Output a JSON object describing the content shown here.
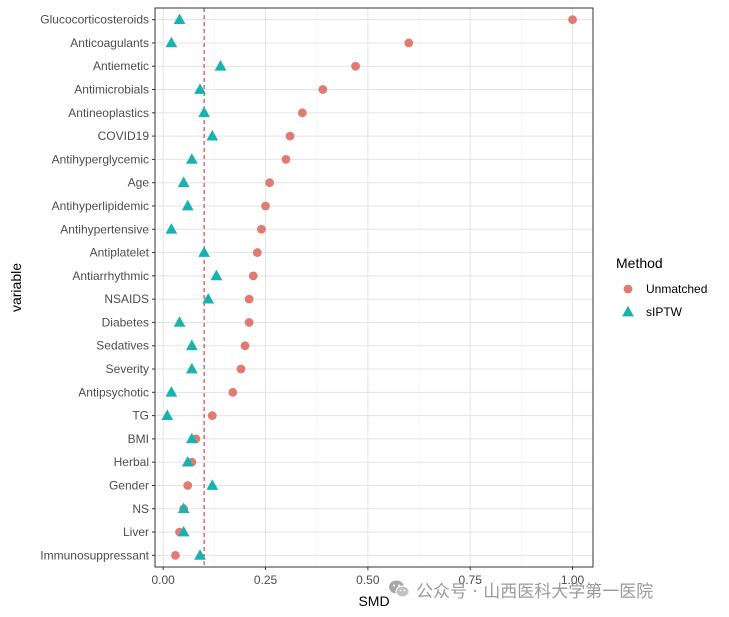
{
  "chart_data": {
    "type": "scatter",
    "orientation": "horizontal-dot-plot",
    "xlabel": "SMD",
    "ylabel": "variable",
    "xlim": [
      -0.02,
      1.05
    ],
    "xticks": [
      0.0,
      0.25,
      0.5,
      0.75,
      1.0
    ],
    "xtick_labels": [
      "0.00",
      "0.25",
      "0.50",
      "0.75",
      "1.00"
    ],
    "reference_line": 0.1,
    "grid": true,
    "legend": {
      "title": "Method",
      "position": "right"
    },
    "categories": [
      "Glucocorticosteroids",
      "Anticoagulants",
      "Antiemetic",
      "Antimicrobials",
      "Antineoplastics",
      "COVID19",
      "Antihyperglycemic",
      "Age",
      "Antihyperlipidemic",
      "Antihypertensive",
      "Antiplatelet",
      "Antiarrhythmic",
      "NSAIDS",
      "Diabetes",
      "Sedatives",
      "Severity",
      "Antipsychotic",
      "TG",
      "BMI",
      "Herbal",
      "Gender",
      "NS",
      "Liver",
      "Immunosuppressant"
    ],
    "series": [
      {
        "name": "Unmatched",
        "marker": "circle",
        "color": "#E07B72",
        "values": [
          1.0,
          0.6,
          0.47,
          0.39,
          0.34,
          0.31,
          0.3,
          0.26,
          0.25,
          0.24,
          0.23,
          0.22,
          0.21,
          0.21,
          0.2,
          0.19,
          0.17,
          0.12,
          0.08,
          0.07,
          0.06,
          0.05,
          0.04,
          0.03
        ]
      },
      {
        "name": "sIPTW",
        "marker": "triangle",
        "color": "#19B2B0",
        "values": [
          0.04,
          0.02,
          0.14,
          0.09,
          0.1,
          0.12,
          0.07,
          0.05,
          0.06,
          0.02,
          0.1,
          0.13,
          0.11,
          0.04,
          0.07,
          0.07,
          0.02,
          0.01,
          0.07,
          0.06,
          0.12,
          0.05,
          0.05,
          0.09
        ]
      }
    ]
  },
  "watermark": {
    "icon": "wechat-icon",
    "text": "公众号 · 山西医科大学第一医院"
  }
}
